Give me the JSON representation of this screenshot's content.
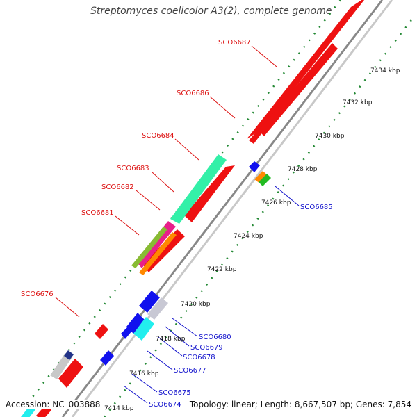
{
  "title": "Streptomyces coelicolor A3(2), complete genome",
  "footer": {
    "accession": "Accession: NC_003888",
    "info": "Topology: linear; Length: 8,667,507 bp; Genes: 7,854"
  },
  "colors": {
    "backbone": "#9a9a9a",
    "forward_gene": "#ee1111",
    "reverse_gene": "#1111ee",
    "ruler_dots": "#228833",
    "forward_label": "#dd1111",
    "reverse_label": "#1111cc"
  },
  "ruler_labels": [
    "7414 kbp",
    "7416 kbp",
    "7418 kbp",
    "7420 kbp",
    "7422 kbp",
    "7424 kbp",
    "7426 kbp",
    "7428 kbp",
    "7430 kbp",
    "7432 kbp",
    "7434 kbp"
  ],
  "forward_gene_labels": [
    "SCO6676",
    "SCO6681",
    "SCO6682",
    "SCO6683",
    "SCO6684",
    "SCO6686",
    "SCO6687"
  ],
  "reverse_gene_labels": [
    "SCO6674",
    "SCO6675",
    "SCO6677",
    "SCO6678",
    "SCO6679",
    "SCO6680",
    "SCO6685"
  ]
}
